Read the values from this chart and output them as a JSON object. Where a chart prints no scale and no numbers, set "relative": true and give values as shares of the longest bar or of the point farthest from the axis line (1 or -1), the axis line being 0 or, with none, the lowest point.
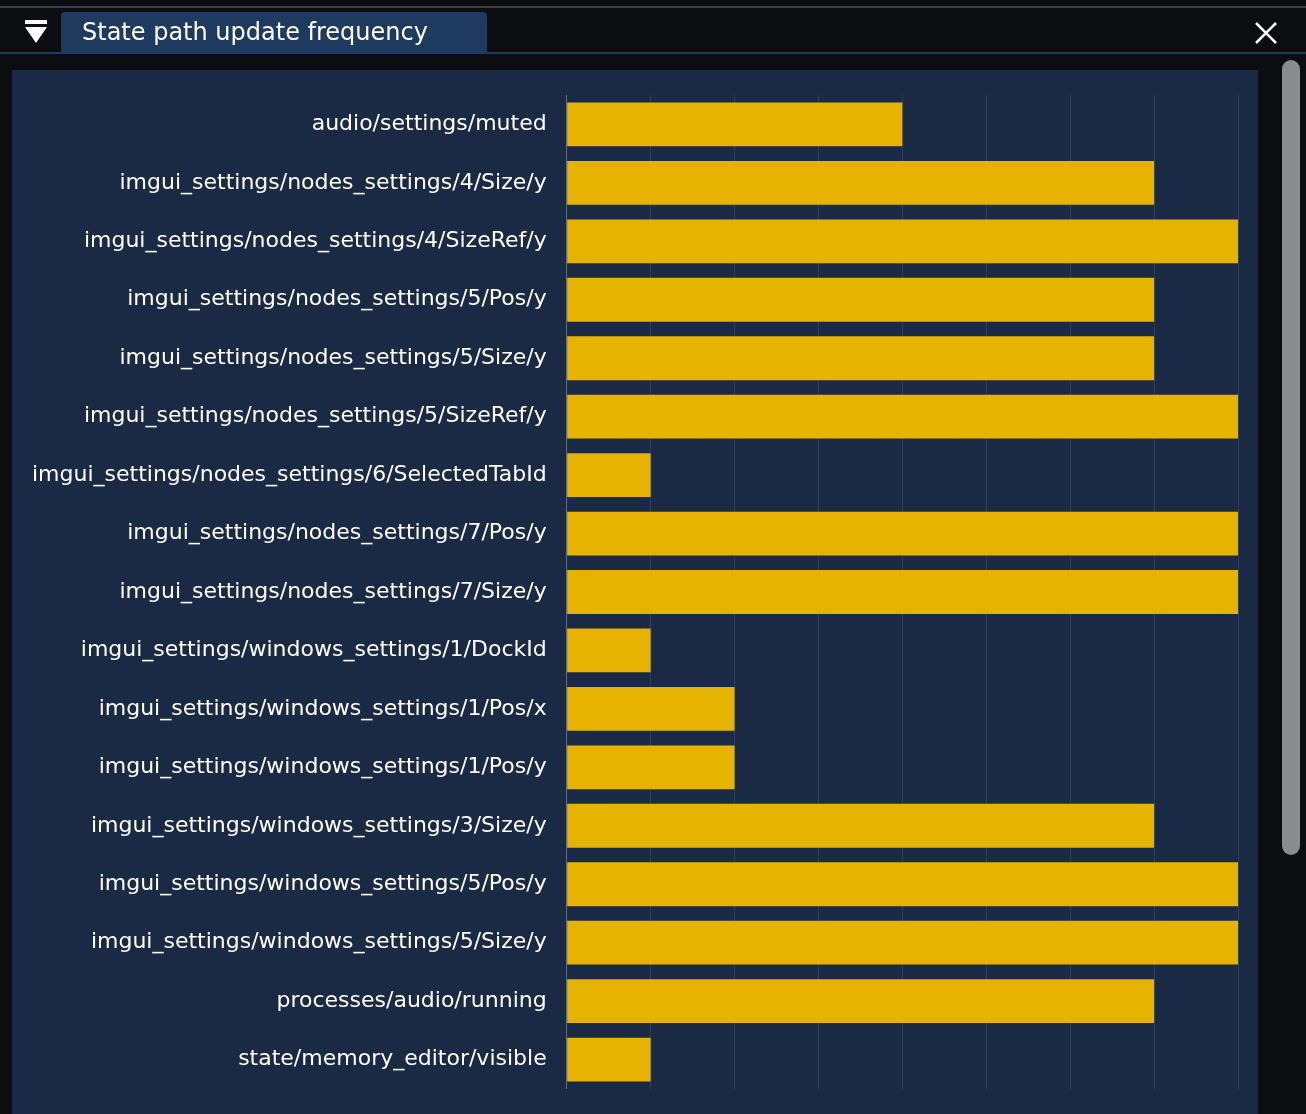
{
  "chart_data": {
    "type": "bar",
    "title": "State path update frequency",
    "orientation": "horizontal",
    "relative": true,
    "grid": "x",
    "tick_labels": "y",
    "categories": [
      "audio/settings/muted",
      "imgui_settings/nodes_settings/4/Size/y",
      "imgui_settings/nodes_settings/4/SizeRef/y",
      "imgui_settings/nodes_settings/5/Pos/y",
      "imgui_settings/nodes_settings/5/Size/y",
      "imgui_settings/nodes_settings/5/SizeRef/y",
      "imgui_settings/nodes_settings/6/SelectedTabId",
      "imgui_settings/nodes_settings/7/Pos/y",
      "imgui_settings/nodes_settings/7/Size/y",
      "imgui_settings/windows_settings/1/DockId",
      "imgui_settings/windows_settings/1/Pos/x",
      "imgui_settings/windows_settings/1/Pos/y",
      "imgui_settings/windows_settings/3/Size/y",
      "imgui_settings/windows_settings/5/Pos/y",
      "imgui_settings/windows_settings/5/Size/y",
      "processes/audio/running",
      "state/memory_editor/visible"
    ],
    "values": [
      0.5,
      0.875,
      1,
      0.875,
      0.875,
      1,
      0.125,
      1,
      1,
      0.125,
      0.25,
      0.25,
      0.875,
      1,
      1,
      0.875,
      0.125
    ],
    "color": "#e6b400"
  }
}
